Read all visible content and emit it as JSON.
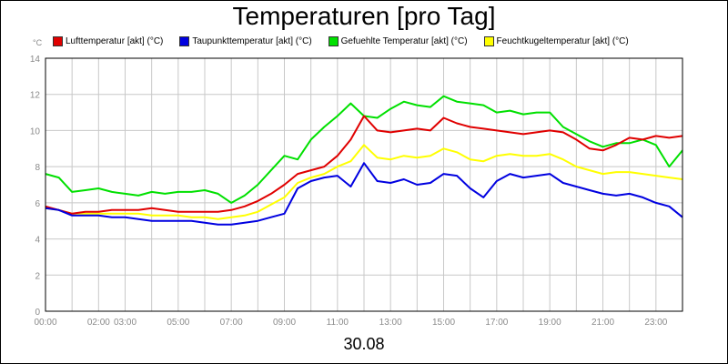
{
  "title": "Temperaturen [pro Tag]",
  "date_label": "30.08",
  "y_unit": "°C",
  "chart_data": {
    "type": "line",
    "title": "Temperaturen [pro Tag]",
    "xlabel": "30.08",
    "ylabel": "°C",
    "ylim": [
      0,
      14
    ],
    "xlim": [
      "00:00",
      "24:00"
    ],
    "grid": true,
    "legend_position": "top",
    "y_ticks": [
      "0",
      "2",
      "4",
      "6",
      "8",
      "10",
      "12",
      "14"
    ],
    "x_ticks": [
      {
        "hour": 0,
        "label": "00:00"
      },
      {
        "hour": 2,
        "label": "02:00"
      },
      {
        "hour": 3,
        "label": "03:00"
      },
      {
        "hour": 5,
        "label": "05:00"
      },
      {
        "hour": 7,
        "label": "07:00"
      },
      {
        "hour": 9,
        "label": "09:00"
      },
      {
        "hour": 11,
        "label": "11:00"
      },
      {
        "hour": 13,
        "label": "13:00"
      },
      {
        "hour": 15,
        "label": "15:00"
      },
      {
        "hour": 17,
        "label": "17:00"
      },
      {
        "hour": 19,
        "label": "19:00"
      },
      {
        "hour": 21,
        "label": "21:00"
      },
      {
        "hour": 23,
        "label": "23:00"
      }
    ],
    "x_hours": [
      0,
      0.5,
      1,
      1.5,
      2,
      2.5,
      3,
      3.5,
      4,
      4.5,
      5,
      5.5,
      6,
      6.5,
      7,
      7.5,
      8,
      8.5,
      9,
      9.5,
      10,
      10.5,
      11,
      11.5,
      12,
      12.5,
      13,
      13.5,
      14,
      14.5,
      15,
      15.5,
      16,
      16.5,
      17,
      17.5,
      18,
      18.5,
      19,
      19.5,
      20,
      20.5,
      21,
      21.5,
      22,
      22.5,
      23,
      23.5,
      24
    ],
    "series": [
      {
        "name": "Lufttemperatur [akt] (°C)",
        "color": "#e00000",
        "values": [
          5.8,
          5.6,
          5.4,
          5.5,
          5.5,
          5.6,
          5.6,
          5.6,
          5.7,
          5.6,
          5.5,
          5.5,
          5.5,
          5.5,
          5.6,
          5.8,
          6.1,
          6.5,
          7.0,
          7.6,
          7.8,
          8.0,
          8.6,
          9.5,
          10.8,
          10.0,
          9.9,
          10.0,
          10.1,
          10.0,
          10.7,
          10.4,
          10.2,
          10.1,
          10.0,
          9.9,
          9.8,
          9.9,
          10.0,
          9.9,
          9.5,
          9.0,
          8.9,
          9.2,
          9.6,
          9.5,
          9.7,
          9.6,
          9.7
        ]
      },
      {
        "name": "Taupunkttemperatur [akt] (°C)",
        "color": "#0000e0",
        "values": [
          5.7,
          5.6,
          5.3,
          5.3,
          5.3,
          5.2,
          5.2,
          5.1,
          5.0,
          5.0,
          5.0,
          5.0,
          4.9,
          4.8,
          4.8,
          4.9,
          5.0,
          5.2,
          5.4,
          6.8,
          7.2,
          7.4,
          7.5,
          6.9,
          8.2,
          7.2,
          7.1,
          7.3,
          7.0,
          7.1,
          7.6,
          7.5,
          6.8,
          6.3,
          7.2,
          7.6,
          7.4,
          7.5,
          7.6,
          7.1,
          6.9,
          6.7,
          6.5,
          6.4,
          6.5,
          6.3,
          6.0,
          5.8,
          5.2
        ]
      },
      {
        "name": "Gefuehlte Temperatur [akt] (°C)",
        "color": "#00e000",
        "values": [
          7.6,
          7.4,
          6.6,
          6.7,
          6.8,
          6.6,
          6.5,
          6.4,
          6.6,
          6.5,
          6.6,
          6.6,
          6.7,
          6.5,
          6.0,
          6.4,
          7.0,
          7.8,
          8.6,
          8.4,
          9.5,
          10.2,
          10.8,
          11.5,
          10.8,
          10.7,
          11.2,
          11.6,
          11.4,
          11.3,
          11.9,
          11.6,
          11.5,
          11.4,
          11.0,
          11.1,
          10.9,
          11.0,
          11.0,
          10.2,
          9.8,
          9.4,
          9.1,
          9.3,
          9.3,
          9.5,
          9.2,
          8.0,
          8.9
        ]
      },
      {
        "name": "Feuchtkugeltemperatur [akt] (°C)",
        "color": "#ffff00",
        "values": [
          5.7,
          5.6,
          5.4,
          5.4,
          5.4,
          5.4,
          5.4,
          5.4,
          5.3,
          5.3,
          5.3,
          5.2,
          5.2,
          5.1,
          5.2,
          5.3,
          5.5,
          5.9,
          6.3,
          7.1,
          7.4,
          7.6,
          8.0,
          8.3,
          9.2,
          8.5,
          8.4,
          8.6,
          8.5,
          8.6,
          9.0,
          8.8,
          8.4,
          8.3,
          8.6,
          8.7,
          8.6,
          8.6,
          8.7,
          8.4,
          8.0,
          7.8,
          7.6,
          7.7,
          7.7,
          7.6,
          7.5,
          7.4,
          7.3
        ]
      }
    ]
  }
}
